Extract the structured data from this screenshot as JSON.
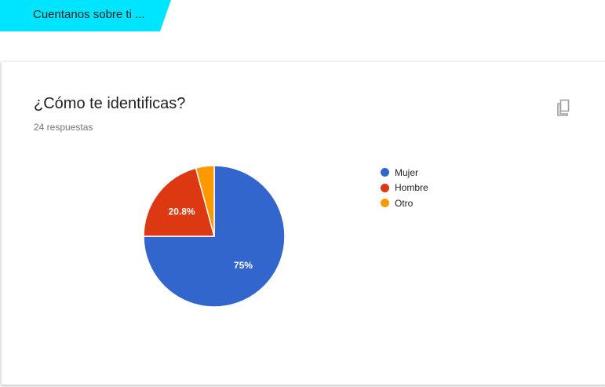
{
  "section": {
    "title": "Cuentanos sobre ti ..."
  },
  "question": {
    "title": "¿Cómo te identificas?",
    "responses": "24 respuestas",
    "copy_icon": "copy-icon"
  },
  "colors": {
    "section_accent": "#00e5ff",
    "mujer": "#3366cc",
    "hombre": "#dc3912",
    "otro": "#ff9900"
  },
  "chart_data": {
    "type": "pie",
    "title": "",
    "categories": [
      "Mujer",
      "Hombre",
      "Otro"
    ],
    "values": [
      75,
      20.8,
      4.2
    ],
    "data_labels": [
      "75%",
      "20.8%",
      ""
    ],
    "colors": [
      "#3366cc",
      "#dc3912",
      "#ff9900"
    ],
    "legend_position": "right"
  }
}
